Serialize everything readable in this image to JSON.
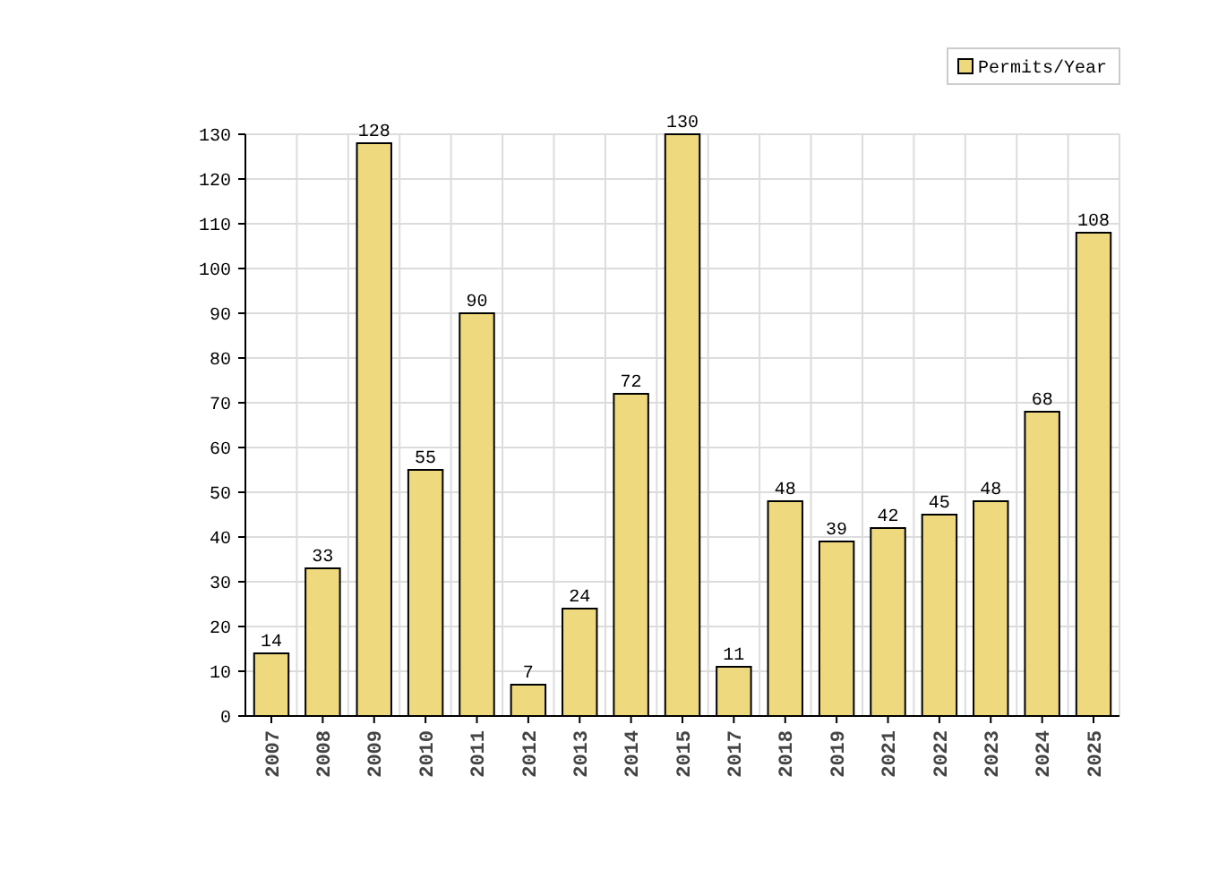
{
  "chart_data": {
    "type": "bar",
    "categories": [
      "2007",
      "2008",
      "2009",
      "2010",
      "2011",
      "2012",
      "2013",
      "2014",
      "2015",
      "2017",
      "2018",
      "2019",
      "2021",
      "2022",
      "2023",
      "2024",
      "2025"
    ],
    "series": [
      {
        "name": "Permits/Year",
        "color": "#eed97e",
        "values": [
          14,
          33,
          128,
          55,
          90,
          7,
          24,
          72,
          130,
          11,
          48,
          39,
          42,
          45,
          48,
          68,
          108
        ]
      }
    ],
    "ylim": [
      0,
      130
    ],
    "yticks": [
      0,
      10,
      20,
      30,
      40,
      50,
      60,
      70,
      80,
      90,
      100,
      110,
      120,
      130
    ],
    "grid": true,
    "legend": "top right",
    "data_labels": true
  }
}
